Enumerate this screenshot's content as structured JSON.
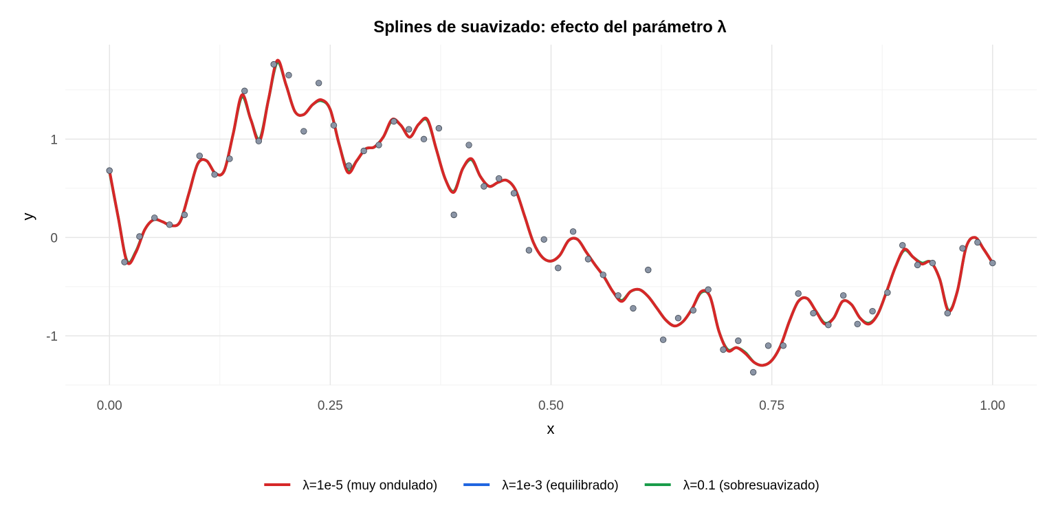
{
  "chart_data": {
    "type": "line",
    "title": "Splines de suavizado: efecto del parámetro λ",
    "xlabel": "x",
    "ylabel": "y",
    "xlim": [
      -0.05,
      1.05
    ],
    "ylim": [
      -1.5,
      1.96
    ],
    "x_ticks": [
      {
        "value": 0.0,
        "label": "0.00"
      },
      {
        "value": 0.25,
        "label": "0.25"
      },
      {
        "value": 0.5,
        "label": "0.50"
      },
      {
        "value": 0.75,
        "label": "0.75"
      },
      {
        "value": 1.0,
        "label": "1.00"
      }
    ],
    "y_ticks": [
      {
        "value": -1,
        "label": "-1"
      },
      {
        "value": 0,
        "label": "0"
      },
      {
        "value": 1,
        "label": "1"
      }
    ],
    "grid": true,
    "legend_position": "bottom",
    "points": {
      "x": [
        0.0,
        0.017,
        0.034,
        0.051,
        0.068,
        0.085,
        0.102,
        0.119,
        0.136,
        0.153,
        0.169,
        0.186,
        0.203,
        0.22,
        0.237,
        0.254,
        0.271,
        0.288,
        0.305,
        0.322,
        0.339,
        0.356,
        0.373,
        0.39,
        0.407,
        0.424,
        0.441,
        0.458,
        0.475,
        0.492,
        0.508,
        0.525,
        0.542,
        0.559,
        0.576,
        0.593,
        0.61,
        0.627,
        0.644,
        0.661,
        0.678,
        0.695,
        0.712,
        0.729,
        0.746,
        0.763,
        0.78,
        0.797,
        0.814,
        0.831,
        0.847,
        0.864,
        0.881,
        0.898,
        0.915,
        0.932,
        0.949,
        0.966,
        0.983,
        1.0
      ],
      "y": [
        0.68,
        -0.25,
        0.01,
        0.2,
        0.13,
        0.23,
        0.83,
        0.64,
        0.8,
        1.49,
        0.98,
        1.76,
        1.65,
        1.08,
        1.57,
        1.14,
        0.73,
        0.88,
        0.94,
        1.18,
        1.1,
        1.0,
        1.11,
        0.23,
        0.94,
        0.52,
        0.6,
        0.45,
        -0.13,
        -0.02,
        -0.31,
        0.06,
        -0.22,
        -0.38,
        -0.59,
        -0.72,
        -0.33,
        -1.04,
        -0.82,
        -0.74,
        -0.53,
        -1.14,
        -1.05,
        -1.37,
        -1.1,
        -1.1,
        -0.57,
        -0.77,
        -0.89,
        -0.59,
        -0.88,
        -0.75,
        -0.56,
        -0.08,
        -0.28,
        -0.26,
        -0.77,
        -0.11,
        -0.05,
        -0.26
      ]
    },
    "series": [
      {
        "name": "λ=1e-5 (muy ondulado)",
        "color": "#d62728",
        "x": [
          0.0,
          0.01,
          0.02,
          0.03,
          0.04,
          0.05,
          0.06,
          0.07,
          0.08,
          0.09,
          0.1,
          0.11,
          0.12,
          0.13,
          0.14,
          0.15,
          0.16,
          0.17,
          0.18,
          0.19,
          0.2,
          0.21,
          0.22,
          0.23,
          0.24,
          0.25,
          0.26,
          0.27,
          0.28,
          0.29,
          0.3,
          0.31,
          0.32,
          0.33,
          0.34,
          0.35,
          0.36,
          0.37,
          0.38,
          0.39,
          0.4,
          0.41,
          0.42,
          0.43,
          0.44,
          0.45,
          0.46,
          0.47,
          0.48,
          0.49,
          0.5,
          0.51,
          0.52,
          0.53,
          0.54,
          0.55,
          0.56,
          0.57,
          0.58,
          0.59,
          0.6,
          0.61,
          0.62,
          0.63,
          0.64,
          0.65,
          0.66,
          0.67,
          0.68,
          0.69,
          0.7,
          0.71,
          0.72,
          0.73,
          0.74,
          0.75,
          0.76,
          0.77,
          0.78,
          0.79,
          0.8,
          0.81,
          0.82,
          0.83,
          0.84,
          0.85,
          0.86,
          0.87,
          0.88,
          0.89,
          0.9,
          0.91,
          0.92,
          0.93,
          0.94,
          0.95,
          0.96,
          0.97,
          0.98,
          0.99,
          1.0
        ],
        "y": [
          0.68,
          0.2,
          -0.25,
          -0.15,
          0.08,
          0.18,
          0.16,
          0.12,
          0.16,
          0.45,
          0.75,
          0.78,
          0.65,
          0.68,
          1.05,
          1.45,
          1.2,
          0.98,
          1.4,
          1.8,
          1.55,
          1.28,
          1.25,
          1.35,
          1.4,
          1.3,
          0.95,
          0.66,
          0.78,
          0.9,
          0.92,
          1.02,
          1.2,
          1.14,
          1.02,
          1.15,
          1.2,
          0.9,
          0.6,
          0.46,
          0.7,
          0.8,
          0.62,
          0.52,
          0.56,
          0.58,
          0.48,
          0.22,
          -0.05,
          -0.2,
          -0.24,
          -0.18,
          -0.03,
          -0.02,
          -0.15,
          -0.28,
          -0.4,
          -0.55,
          -0.65,
          -0.55,
          -0.53,
          -0.6,
          -0.72,
          -0.84,
          -0.9,
          -0.85,
          -0.72,
          -0.55,
          -0.6,
          -0.95,
          -1.15,
          -1.12,
          -1.18,
          -1.27,
          -1.3,
          -1.25,
          -1.1,
          -0.85,
          -0.65,
          -0.62,
          -0.75,
          -0.88,
          -0.82,
          -0.65,
          -0.68,
          -0.82,
          -0.88,
          -0.78,
          -0.55,
          -0.3,
          -0.12,
          -0.2,
          -0.27,
          -0.25,
          -0.42,
          -0.75,
          -0.55,
          -0.1,
          0.0,
          -0.12,
          -0.26
        ]
      },
      {
        "name": "λ=1e-3 (equilibrado)",
        "color": "#2166e0",
        "x": [],
        "y": []
      },
      {
        "name": "λ=0.1 (sobresuavizado)",
        "color": "#1a9c4a",
        "x": [
          0.0,
          0.01,
          0.02,
          0.03,
          0.04,
          0.05,
          0.06,
          0.07,
          0.08,
          0.09,
          0.1,
          0.11,
          0.12,
          0.13,
          0.14,
          0.15,
          0.16,
          0.17,
          0.18,
          0.19,
          0.2,
          0.21,
          0.22,
          0.23,
          0.24,
          0.25,
          0.26,
          0.27,
          0.28,
          0.29,
          0.3,
          0.31,
          0.32,
          0.33,
          0.34,
          0.35,
          0.36,
          0.37,
          0.38,
          0.39,
          0.4,
          0.41,
          0.42,
          0.43,
          0.44,
          0.45,
          0.46,
          0.47,
          0.48,
          0.49,
          0.5,
          0.51,
          0.52,
          0.53,
          0.54,
          0.55,
          0.56,
          0.57,
          0.58,
          0.59,
          0.6,
          0.61,
          0.62,
          0.63,
          0.64,
          0.65,
          0.66,
          0.67,
          0.68,
          0.69,
          0.7,
          0.71,
          0.72,
          0.73,
          0.74,
          0.75,
          0.76,
          0.77,
          0.78,
          0.79,
          0.8,
          0.81,
          0.82,
          0.83,
          0.84,
          0.85,
          0.86,
          0.87,
          0.88,
          0.89,
          0.9,
          0.91,
          0.92,
          0.93,
          0.94,
          0.95,
          0.96,
          0.97,
          0.98,
          0.99,
          1.0
        ],
        "y": [
          0.67,
          0.2,
          -0.24,
          -0.14,
          0.08,
          0.18,
          0.16,
          0.12,
          0.16,
          0.45,
          0.75,
          0.78,
          0.65,
          0.68,
          1.05,
          1.43,
          1.2,
          1.0,
          1.4,
          1.78,
          1.55,
          1.28,
          1.25,
          1.35,
          1.39,
          1.3,
          0.95,
          0.68,
          0.78,
          0.9,
          0.92,
          1.02,
          1.19,
          1.14,
          1.02,
          1.15,
          1.19,
          0.9,
          0.6,
          0.47,
          0.7,
          0.79,
          0.62,
          0.52,
          0.56,
          0.58,
          0.48,
          0.22,
          -0.05,
          -0.2,
          -0.24,
          -0.18,
          -0.03,
          -0.02,
          -0.15,
          -0.28,
          -0.4,
          -0.55,
          -0.64,
          -0.55,
          -0.53,
          -0.6,
          -0.72,
          -0.84,
          -0.9,
          -0.85,
          -0.72,
          -0.56,
          -0.6,
          -0.95,
          -1.14,
          -1.12,
          -1.17,
          -1.27,
          -1.3,
          -1.25,
          -1.1,
          -0.85,
          -0.65,
          -0.62,
          -0.75,
          -0.87,
          -0.82,
          -0.65,
          -0.68,
          -0.82,
          -0.87,
          -0.78,
          -0.55,
          -0.3,
          -0.13,
          -0.2,
          -0.26,
          -0.25,
          -0.42,
          -0.74,
          -0.55,
          -0.1,
          0.0,
          -0.12,
          -0.26
        ]
      }
    ]
  }
}
